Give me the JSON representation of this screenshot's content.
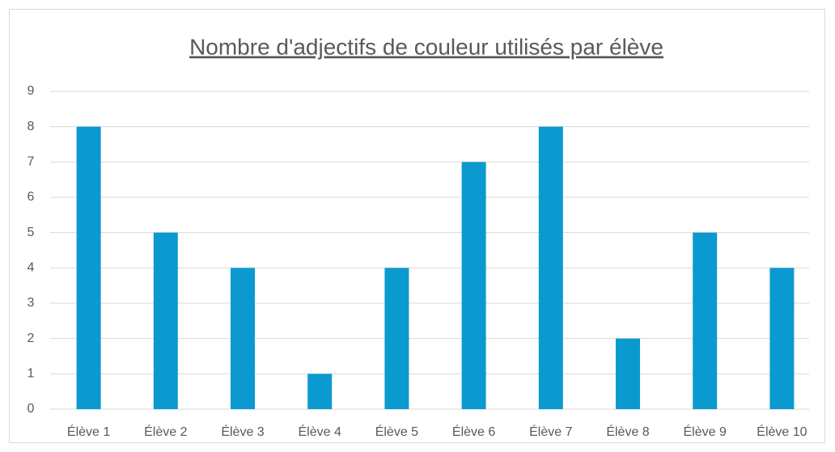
{
  "chart_data": {
    "type": "bar",
    "title": "Nombre d'adjectifs de couleur utilisés par élève",
    "categories": [
      "Élève 1",
      "Élève 2",
      "Élève 3",
      "Élève 4",
      "Élève 5",
      "Élève 6",
      "Élève 7",
      "Élève 8",
      "Élève 9",
      "Élève 10"
    ],
    "values": [
      8,
      5,
      4,
      1,
      4,
      7,
      8,
      2,
      5,
      4
    ],
    "color": "#0b9acf",
    "ylim": [
      0,
      9
    ],
    "yticks": [
      0,
      1,
      2,
      3,
      4,
      5,
      6,
      7,
      8,
      9
    ],
    "grid": true
  }
}
